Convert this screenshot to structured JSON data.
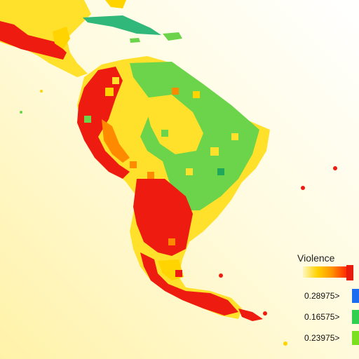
{
  "legend": {
    "title": "Violence",
    "entries": [
      {
        "label": "0.28975>",
        "color": "#1d6bf0"
      },
      {
        "label": "0.16575>",
        "color": "#2fd050"
      },
      {
        "label": "0.23975>",
        "color": "#7be020"
      }
    ]
  },
  "colors": {
    "ocean": "#ffffff",
    "ocean_haze": "#fff3b0",
    "high": "#ee1c10",
    "mid_high": "#ff8a00",
    "mid": "#ffe02a",
    "low": "#6cd44a",
    "lowest": "#1fa85a"
  }
}
